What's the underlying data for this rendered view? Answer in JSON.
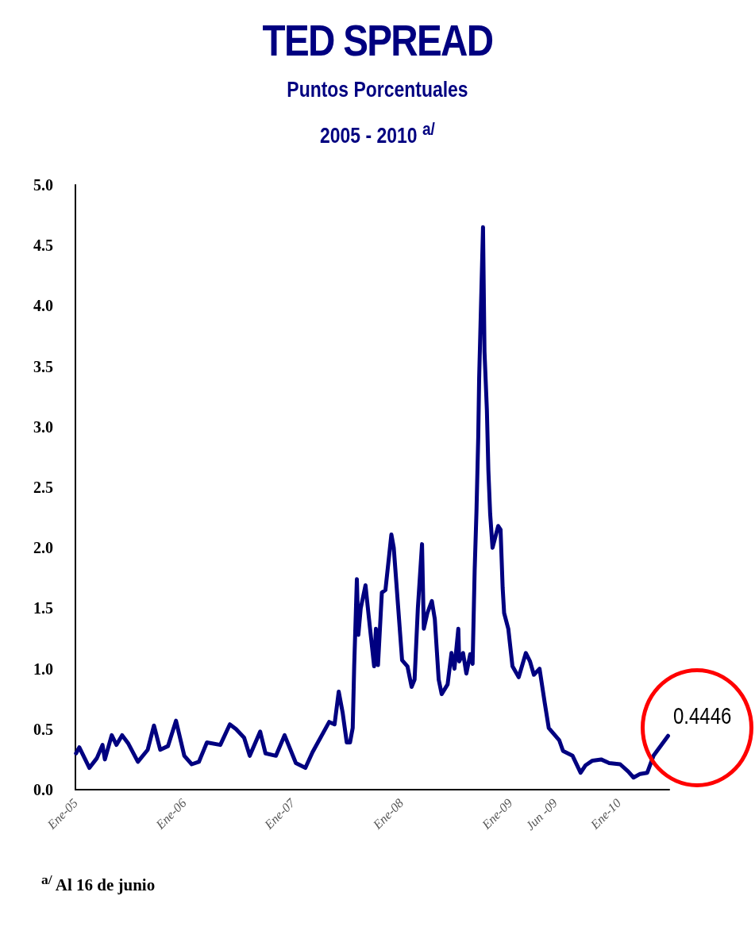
{
  "chart_data": {
    "type": "line",
    "title": "TED SPREAD",
    "subtitle": "Puntos Porcentuales\n2005 - 2010 $^{a/}$",
    "x": [
      "2005-01-03",
      "2005-01-14",
      "2005-02-17",
      "2005-03-14",
      "2005-04-02",
      "2005-04-10",
      "2005-05-03",
      "2005-05-19",
      "2005-06-07",
      "2005-06-28",
      "2005-07-30",
      "2005-09-01",
      "2005-09-22",
      "2005-10-13",
      "2005-11-08",
      "2005-12-05",
      "2006-01-02",
      "2006-01-27",
      "2006-02-20",
      "2006-03-19",
      "2006-05-03",
      "2006-06-04",
      "2006-06-25",
      "2006-07-22",
      "2006-08-10",
      "2006-09-14",
      "2006-10-02",
      "2006-11-06",
      "2006-12-05",
      "2007-01-12",
      "2007-02-13",
      "2007-03-09",
      "2007-05-04",
      "2007-05-22",
      "2007-06-05",
      "2007-06-18",
      "2007-07-02",
      "2007-07-13",
      "2007-07-22",
      "2007-07-27",
      "2007-08-05",
      "2007-08-10",
      "2007-08-18",
      "2007-09-03",
      "2007-09-14",
      "2007-10-02",
      "2007-10-08",
      "2007-10-15",
      "2007-10-28",
      "2007-11-09",
      "2007-11-29",
      "2007-12-07",
      "2008-01-04",
      "2008-01-22",
      "2008-02-05",
      "2008-02-15",
      "2008-02-26",
      "2008-03-11",
      "2008-03-17",
      "2008-03-29",
      "2008-04-13",
      "2008-04-23",
      "2008-05-06",
      "2008-05-16",
      "2008-06-05",
      "2008-06-18",
      "2008-06-28",
      "2008-07-11",
      "2008-07-14",
      "2008-07-27",
      "2008-08-07",
      "2008-08-20",
      "2008-08-28",
      "2008-09-04",
      "2008-09-10",
      "2008-09-16",
      "2008-09-19",
      "2008-09-24",
      "2008-10-02",
      "2008-10-07",
      "2008-10-15",
      "2008-10-20",
      "2008-10-26",
      "2008-11-03",
      "2008-11-22",
      "2008-11-30",
      "2008-12-07",
      "2008-12-12",
      "2008-12-26",
      "2009-01-09",
      "2009-01-30",
      "2009-02-23",
      "2009-03-09",
      "2009-03-22",
      "2009-04-10",
      "2009-04-28",
      "2009-05-11",
      "2009-06-15",
      "2009-06-28",
      "2009-07-30",
      "2009-08-26",
      "2009-09-11",
      "2009-10-05",
      "2009-11-03",
      "2009-11-30",
      "2010-01-06",
      "2010-02-02",
      "2010-02-20",
      "2010-03-14",
      "2010-04-07",
      "2010-04-28",
      "2010-06-16"
    ],
    "series": [
      {
        "color": "#000080",
        "values": [
          0.3,
          0.35,
          0.18,
          0.26,
          0.37,
          0.25,
          0.45,
          0.37,
          0.45,
          0.38,
          0.23,
          0.33,
          0.53,
          0.33,
          0.36,
          0.57,
          0.28,
          0.21,
          0.23,
          0.39,
          0.37,
          0.54,
          0.5,
          0.43,
          0.28,
          0.48,
          0.3,
          0.28,
          0.45,
          0.22,
          0.18,
          0.31,
          0.56,
          0.54,
          0.81,
          0.64,
          0.39,
          0.39,
          0.51,
          1.02,
          1.74,
          1.28,
          1.5,
          1.69,
          1.43,
          1.02,
          1.33,
          1.03,
          1.63,
          1.65,
          2.11,
          2.0,
          1.07,
          1.02,
          0.85,
          0.91,
          1.5,
          2.03,
          1.33,
          1.46,
          1.56,
          1.41,
          0.91,
          0.79,
          0.87,
          1.13,
          1.0,
          1.33,
          1.06,
          1.13,
          0.96,
          1.12,
          1.04,
          1.82,
          2.3,
          2.92,
          3.4,
          3.88,
          4.65,
          3.62,
          3.14,
          2.64,
          2.28,
          2.0,
          2.18,
          2.15,
          1.67,
          1.46,
          1.33,
          1.02,
          0.93,
          1.13,
          1.06,
          0.95,
          1.0,
          0.71,
          0.51,
          0.41,
          0.32,
          0.28,
          0.14,
          0.2,
          0.24,
          0.25,
          0.22,
          0.21,
          0.15,
          0.1,
          0.13,
          0.14,
          0.28,
          0.4446
        ]
      }
    ],
    "xlim": [
      "2005-01-01",
      "2010-06-20"
    ],
    "xticks": [
      {
        "value": "2005-01-01",
        "label": "Ene-05"
      },
      {
        "value": "2006-01-01",
        "label": "Ene-06"
      },
      {
        "value": "2007-01-01",
        "label": "Ene-07"
      },
      {
        "value": "2008-01-01",
        "label": "Ene-08"
      },
      {
        "value": "2009-01-01",
        "label": "Ene-09"
      },
      {
        "value": "2009-06-01",
        "label": "Jun -09"
      },
      {
        "value": "2010-01-01",
        "label": "Ene-10"
      }
    ],
    "ylim": [
      0,
      5
    ],
    "yticks": [
      {
        "value": 0,
        "label": "0.0"
      },
      {
        "value": 0.5,
        "label": "0.5"
      },
      {
        "value": 1,
        "label": "1.0"
      },
      {
        "value": 1.5,
        "label": "1.5"
      },
      {
        "value": 2,
        "label": "2.0"
      },
      {
        "value": 2.5,
        "label": "2.5"
      },
      {
        "value": 3,
        "label": "3.0"
      },
      {
        "value": 3.5,
        "label": "3.5"
      },
      {
        "value": 4,
        "label": "4.0"
      },
      {
        "value": 4.5,
        "label": "4.5"
      },
      {
        "value": 5,
        "label": "5.0"
      }
    ],
    "grid": false,
    "marker": "none",
    "line_style": "solid",
    "annotations": [
      {
        "text": "0.4446",
        "x": "2010-06-16",
        "y": 0.4446
      },
      "$^{a/}$ Al 16 de junio"
    ]
  }
}
